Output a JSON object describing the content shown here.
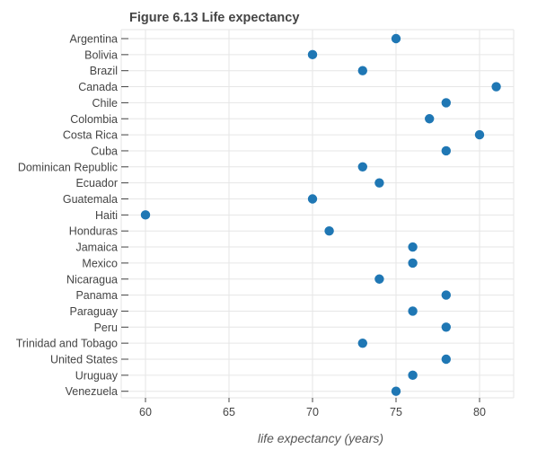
{
  "chart_data": {
    "type": "scatter",
    "title": "Figure 6.13 Life expectancy",
    "xlabel": "life expectancy (years)",
    "ylabel": "",
    "xlim": [
      58.5,
      82
    ],
    "x_ticks": [
      60,
      65,
      70,
      75,
      80
    ],
    "grid": true,
    "categories": [
      "Argentina",
      "Bolivia",
      "Brazil",
      "Canada",
      "Chile",
      "Colombia",
      "Costa Rica",
      "Cuba",
      "Dominican Republic",
      "Ecuador",
      "Guatemala",
      "Haiti",
      "Honduras",
      "Jamaica",
      "Mexico",
      "Nicaragua",
      "Panama",
      "Paraguay",
      "Peru",
      "Trinidad and Tobago",
      "United States",
      "Uruguay",
      "Venezuela"
    ],
    "values": [
      75,
      70,
      73,
      81,
      78,
      77,
      80,
      78,
      73,
      74,
      70,
      60,
      71,
      76,
      76,
      74,
      78,
      76,
      78,
      73,
      78,
      76,
      75
    ],
    "point_color": "#1f77b4"
  }
}
